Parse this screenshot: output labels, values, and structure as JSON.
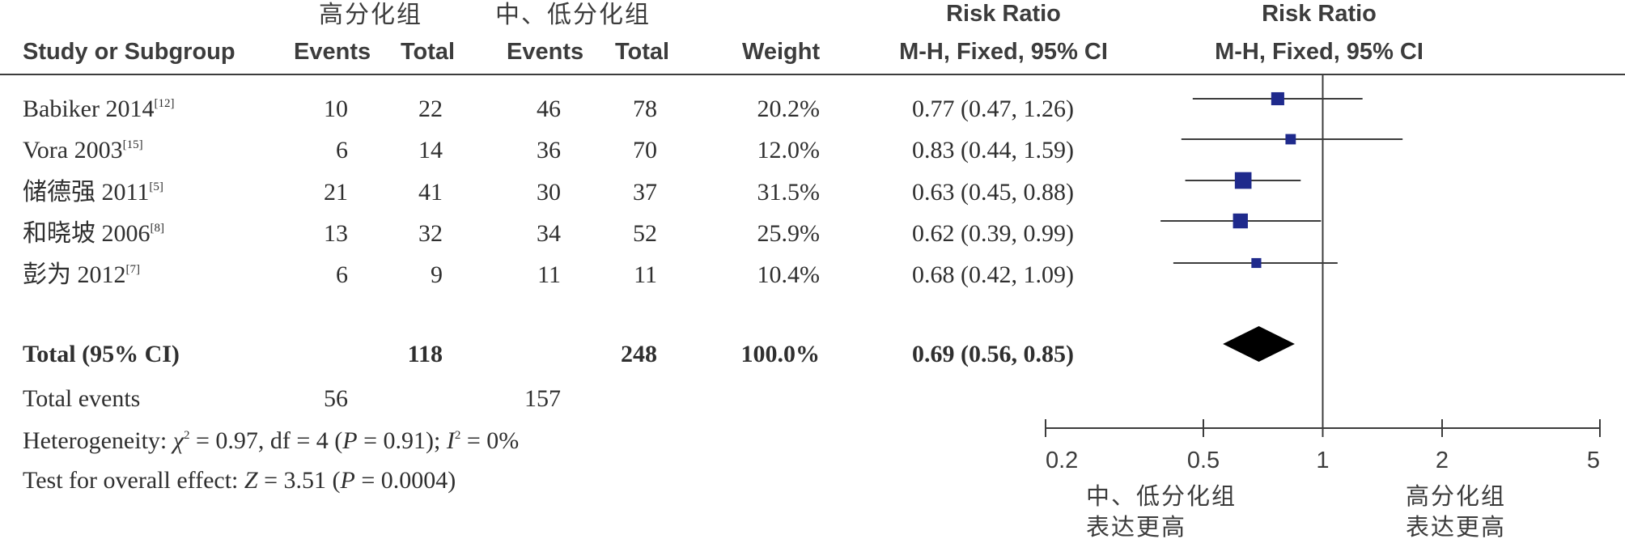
{
  "header": {
    "group_high": "高分化组",
    "group_low": "中、低分化组",
    "risk_ratio_1": "Risk Ratio",
    "risk_ratio_2": "Risk Ratio",
    "study_col": "Study or Subgroup",
    "events_1": "Events",
    "total_1": "Total",
    "events_2": "Events",
    "total_2": "Total",
    "weight": "Weight",
    "method_1": "M-H, Fixed, 95% CI",
    "method_2": "M-H, Fixed, 95% CI"
  },
  "studies": [
    {
      "name": "Babiker 2014",
      "ref": "[12]",
      "e1": "10",
      "t1": "22",
      "e2": "46",
      "t2": "78",
      "weight": "20.2%",
      "ci_text": "0.77 (0.47, 1.26)"
    },
    {
      "name": "Vora 2003",
      "ref": "[15]",
      "e1": "6",
      "t1": "14",
      "e2": "36",
      "t2": "70",
      "weight": "12.0%",
      "ci_text": "0.83 (0.44, 1.59)"
    },
    {
      "name": "储德强 2011",
      "ref": "[5]",
      "e1": "21",
      "t1": "41",
      "e2": "30",
      "t2": "37",
      "weight": "31.5%",
      "ci_text": "0.63 (0.45, 0.88)"
    },
    {
      "name": "和晓坡 2006",
      "ref": "[8]",
      "e1": "13",
      "t1": "32",
      "e2": "34",
      "t2": "52",
      "weight": "25.9%",
      "ci_text": "0.62 (0.39, 0.99)"
    },
    {
      "name": "彭为 2012",
      "ref": "[7]",
      "e1": "6",
      "t1": "9",
      "e2": "11",
      "t2": "11",
      "weight": "10.4%",
      "ci_text": "0.68 (0.42, 1.09)"
    }
  ],
  "total": {
    "label": "Total (95% CI)",
    "t1": "118",
    "t2": "248",
    "weight": "100.0%",
    "ci_text": "0.69 (0.56, 0.85)"
  },
  "total_events": {
    "label": "Total events",
    "e1": "56",
    "e2": "157"
  },
  "heterogeneity": {
    "prefix": "Heterogeneity: ",
    "chi": "χ",
    "chi_text": " = 0.97, df = 4 (",
    "p1": "P",
    "p1_text": " = 0.91); ",
    "i": "I",
    "i_text": " = 0%",
    "sq": "2"
  },
  "overall": {
    "prefix": "Test for overall effect: ",
    "z": "Z",
    "z_text": " = 3.51 (",
    "p": "P",
    "p_text": " = 0.0004)"
  },
  "favours": {
    "left_1": "中、低分化组",
    "left_2": "表达更高",
    "right_1": "高分化组",
    "right_2": "表达更高"
  },
  "colors": {
    "marker": "#1f2a8c",
    "diamond": "#000000",
    "line": "#3c3c3c"
  },
  "chart_data": {
    "type": "forest",
    "x_scale": "log",
    "xlim": [
      0.2,
      5
    ],
    "x_ticks": [
      0.2,
      0.5,
      1,
      2,
      5
    ],
    "x_tick_labels": [
      "0.2",
      "0.5",
      "1",
      "2",
      "5"
    ],
    "null_line": 1,
    "series": [
      {
        "study": "Babiker 2014",
        "rr": 0.77,
        "lower": 0.47,
        "upper": 1.26,
        "weight": 20.2
      },
      {
        "study": "Vora 2003",
        "rr": 0.83,
        "lower": 0.44,
        "upper": 1.59,
        "weight": 12.0
      },
      {
        "study": "储德强 2011",
        "rr": 0.63,
        "lower": 0.45,
        "upper": 0.88,
        "weight": 31.5
      },
      {
        "study": "和晓坡 2006",
        "rr": 0.62,
        "lower": 0.39,
        "upper": 0.99,
        "weight": 25.9
      },
      {
        "study": "彭为 2012",
        "rr": 0.68,
        "lower": 0.42,
        "upper": 1.09,
        "weight": 10.4
      }
    ],
    "pooled": {
      "rr": 0.69,
      "lower": 0.56,
      "upper": 0.85
    }
  }
}
